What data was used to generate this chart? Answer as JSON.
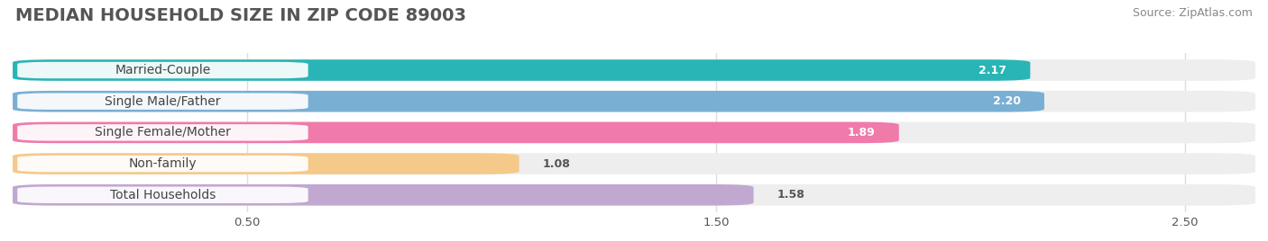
{
  "title": "MEDIAN HOUSEHOLD SIZE IN ZIP CODE 89003",
  "source": "Source: ZipAtlas.com",
  "categories": [
    "Married-Couple",
    "Single Male/Father",
    "Single Female/Mother",
    "Non-family",
    "Total Households"
  ],
  "values": [
    2.17,
    2.2,
    1.89,
    1.08,
    1.58
  ],
  "bar_colors": [
    "#29b5b5",
    "#7aafd4",
    "#f07aaa",
    "#f5c98a",
    "#c0a8d0"
  ],
  "xlim": [
    0,
    2.65
  ],
  "xticks": [
    0.5,
    1.5,
    2.5
  ],
  "value_label_colors": [
    "white",
    "white",
    "white",
    "#555555",
    "#555555"
  ],
  "background_color": "#ffffff",
  "bar_bg_color": "#eeeeee",
  "title_fontsize": 14,
  "source_fontsize": 9,
  "label_fontsize": 10,
  "value_fontsize": 9
}
